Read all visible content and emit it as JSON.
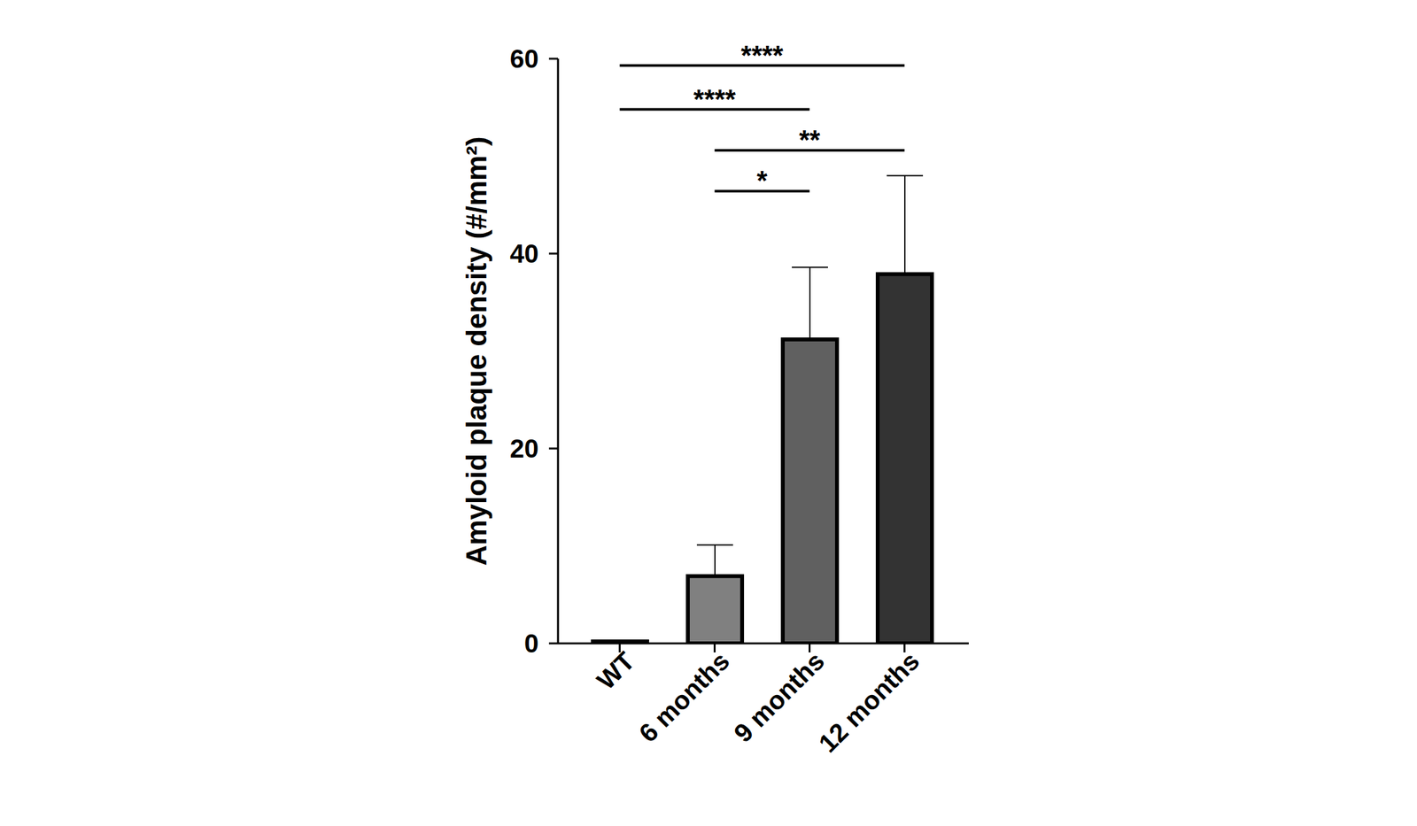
{
  "chart_data": {
    "type": "bar",
    "categories": [
      "WT",
      "6 months",
      "9 months",
      "12 months"
    ],
    "values": [
      0.2,
      6.9,
      31.2,
      37.9
    ],
    "errors": [
      0,
      3.2,
      7.4,
      10.1
    ],
    "colors": [
      "#ffffff",
      "#808080",
      "#606060",
      "#333333"
    ],
    "y_label": "Amyloid plaque density (#/mm²)",
    "ylim": [
      0,
      60
    ],
    "yticks": [
      0,
      20,
      40,
      60
    ],
    "comparisons": [
      {
        "from": "WT",
        "to": "12 months",
        "label": "****",
        "y": 59.3
      },
      {
        "from": "WT",
        "to": "9 months",
        "label": "****",
        "y": 54.8
      },
      {
        "from": "6 months",
        "to": "12 months",
        "label": "**",
        "y": 50.6
      },
      {
        "from": "6 months",
        "to": "9 months",
        "label": "*",
        "y": 46.4
      }
    ]
  }
}
